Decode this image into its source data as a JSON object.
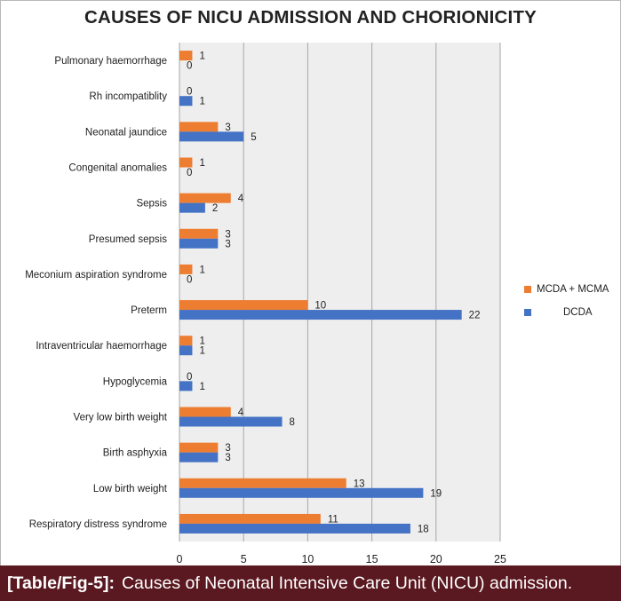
{
  "chart_data": {
    "type": "bar",
    "orientation": "horizontal",
    "title": "CAUSES OF NICU ADMISSION AND CHORIONICITY",
    "categories": [
      "Pulmonary haemorrhage",
      "Rh incompatiblity",
      "Neonatal jaundice",
      "Congenital anomalies",
      "Sepsis",
      "Presumed sepsis",
      "Meconium aspiration syndrome",
      "Preterm",
      "Intraventricular haemorrhage",
      "Hypoglycemia",
      "Very low birth weight",
      "Birth asphyxia",
      "Low birth weight",
      "Respiratory distress syndrome"
    ],
    "series": [
      {
        "name": "MCDA + MCMA",
        "color": "#ed7d31",
        "values": [
          1,
          0,
          3,
          1,
          4,
          3,
          1,
          10,
          1,
          0,
          4,
          3,
          13,
          11
        ]
      },
      {
        "name": "DCDA",
        "color": "#4472c4",
        "values": [
          0,
          1,
          5,
          0,
          2,
          3,
          0,
          22,
          1,
          1,
          8,
          3,
          19,
          18
        ]
      }
    ],
    "xlim": [
      0,
      25
    ],
    "xticks": [
      "0",
      "5",
      "10",
      "15",
      "20",
      "25"
    ],
    "legend_position": "right",
    "grid": true,
    "data_labels": true
  },
  "caption": {
    "tag": "[Table/Fig-5]:",
    "text": "Causes of Neonatal Intensive Care Unit (NICU) admission."
  }
}
